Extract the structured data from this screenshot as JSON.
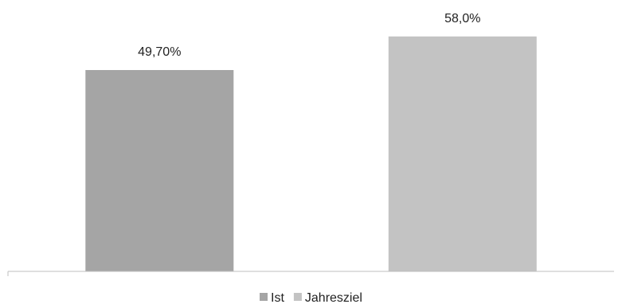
{
  "chart_data": {
    "type": "bar",
    "categories": [
      "Ist",
      "Jahresziel"
    ],
    "values": [
      49.7,
      58.0
    ],
    "data_labels": [
      "49,70%",
      "58,0%"
    ],
    "colors": [
      "#a5a5a5",
      "#c3c3c3"
    ],
    "ylim": [
      0,
      67
    ],
    "grid": false,
    "legend": {
      "position": "bottom",
      "entries": [
        "Ist",
        "Jahresziel"
      ]
    },
    "title": "",
    "xlabel": "",
    "ylabel": ""
  }
}
